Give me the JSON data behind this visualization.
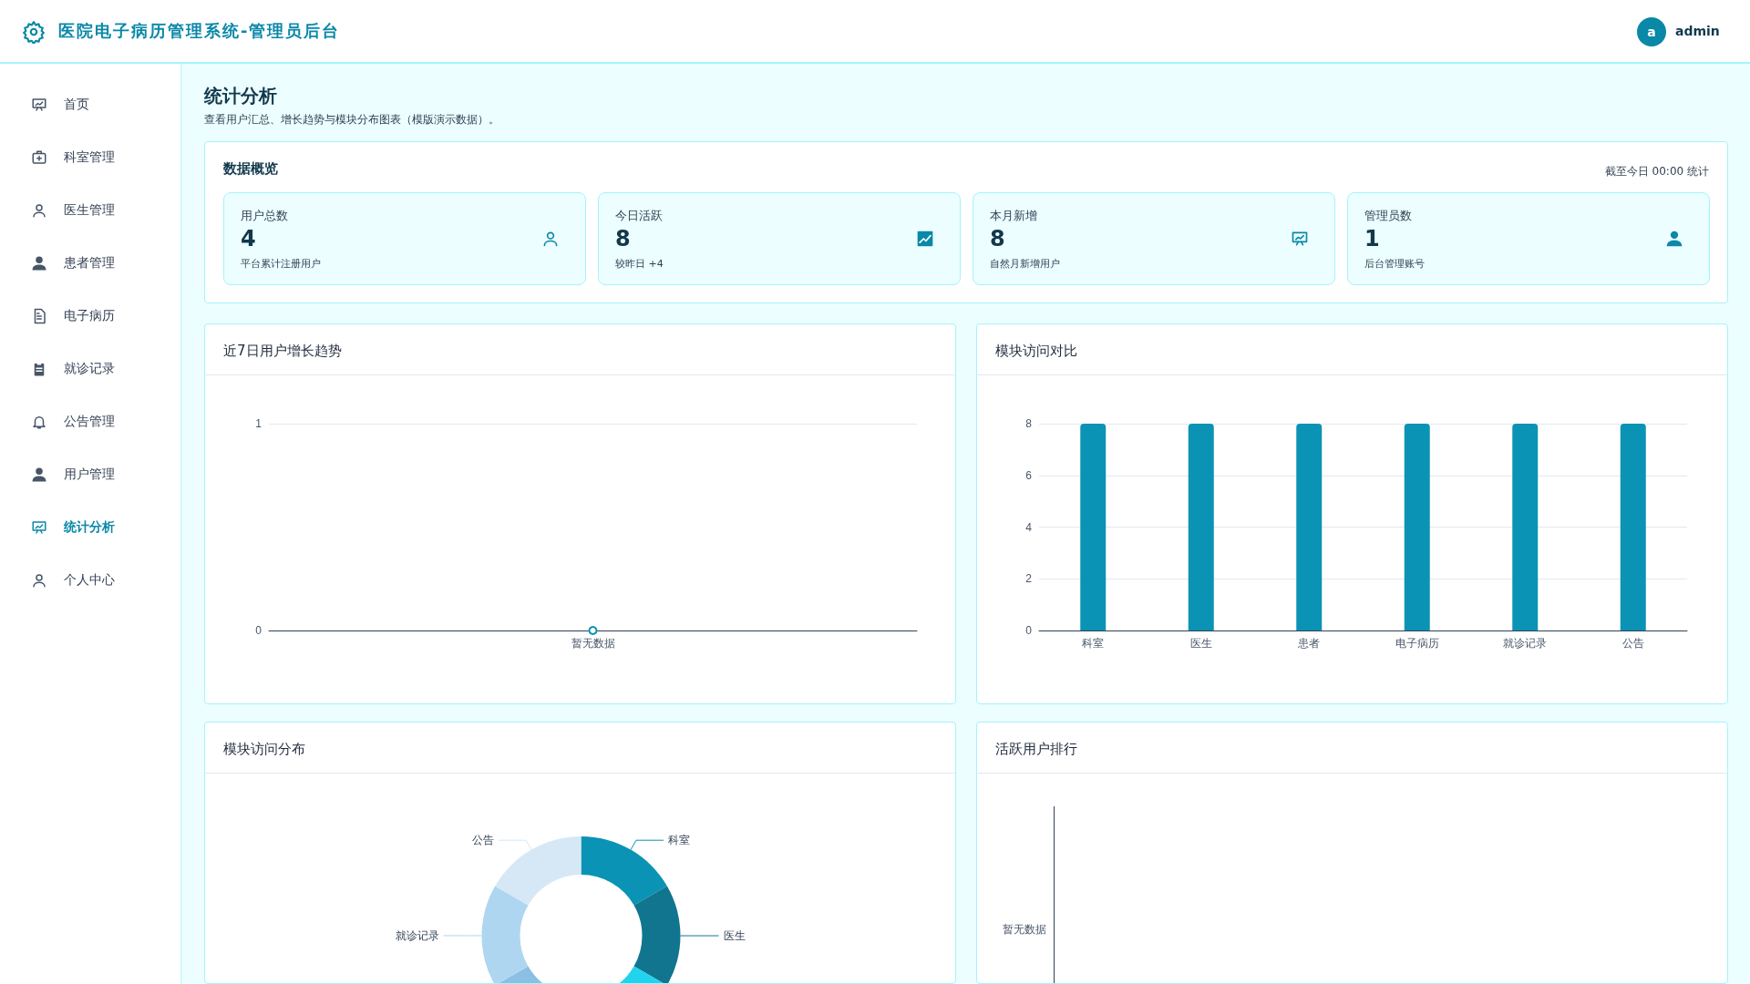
{
  "chart_data": [
    {
      "type": "other",
      "title": "医院电子病历管理系统-管理员后台",
      "annotations": [
        "a",
        "admin",
        "首页",
        "科室管理",
        "医生管理",
        "患者管理",
        "电子病历",
        "就诊记录",
        "公告管理",
        "用户管理",
        "统计分析",
        "个人中心"
      ]
    },
    {
      "type": "other",
      "title": "统计分析",
      "subtitle": "查看用户汇总、增长趋势与模块分布图表（模版演示数据）。",
      "annotations": [
        "数据概览",
        "截至今日 00:00 统计",
        "用户总数",
        "4",
        "平台累计注册用户",
        "今日活跃",
        "8",
        "较昨日 +4",
        "本月新增",
        "8",
        "自然月新增用户",
        "管理员数",
        "1",
        "后台管理账号"
      ]
    },
    {
      "type": "line",
      "title": "近7日用户增长趋势",
      "categories": [
        "暂无数据"
      ],
      "values": [
        0
      ],
      "color": "#0a93b5",
      "ylim": [
        0,
        1
      ],
      "yticks": [
        0,
        1
      ],
      "grid": "y",
      "marker": "circle"
    },
    {
      "type": "bar",
      "title": "模块访问对比",
      "categories": [
        "科室",
        "医生",
        "患者",
        "电子病历",
        "就诊记录",
        "公告"
      ],
      "values": [
        8,
        8,
        8,
        8,
        8,
        8
      ],
      "color": "#0a93b5",
      "ylim": [
        0,
        8
      ],
      "yticks": [
        0,
        2,
        4,
        6,
        8
      ],
      "grid": "y"
    },
    {
      "type": "donut",
      "title": "模块访问分布",
      "categories": [
        "科室",
        "医生",
        null,
        null,
        "就诊记录",
        "公告"
      ],
      "values": [
        16.67,
        16.67,
        16.66,
        16.67,
        16.67,
        16.66
      ],
      "colors": [
        "#0a93b5",
        "#11758f",
        "#22d3ee",
        "#8bbfe3",
        "#aed6f1",
        "#d6e8f6"
      ]
    },
    {
      "type": "other",
      "title": "活跃用户排行",
      "annotations": [
        "暂无数据"
      ]
    }
  ]
}
